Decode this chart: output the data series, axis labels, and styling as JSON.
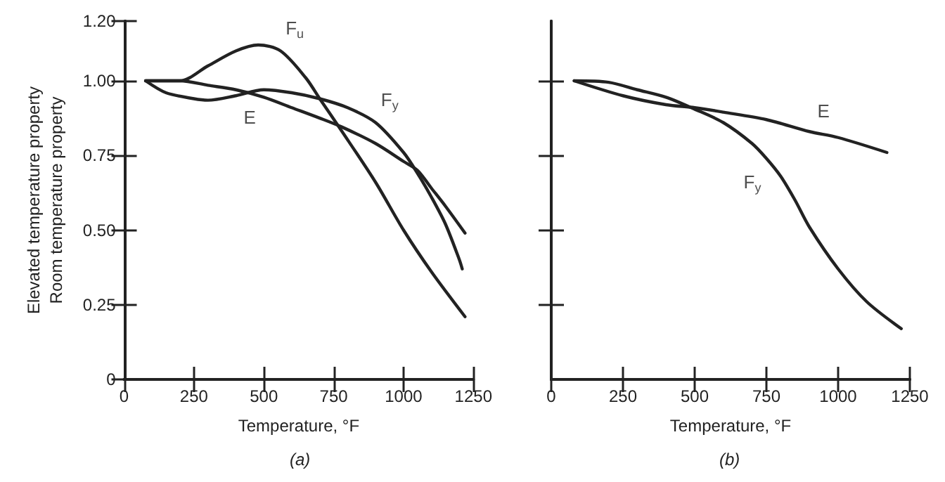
{
  "chart_data": [
    {
      "type": "line",
      "marker": "none",
      "line_style": "solid",
      "xlabel": "Temperature, °F",
      "ylabel": "Elevated temperature property\nRoom temperature property",
      "xlim": [
        0,
        1250
      ],
      "xticks": [
        0,
        250,
        500,
        750,
        1000,
        1250
      ],
      "ylim": [
        0,
        1.2
      ],
      "yticks": [
        0,
        0.25,
        {
          "value": 0.5,
          "label": "0.50"
        },
        0.75,
        {
          "value": 1.0,
          "label": "1.00"
        },
        {
          "value": 1.2,
          "label": "1.20"
        }
      ],
      "series": [
        {
          "color": "#222222",
          "x": [
            77,
            200,
            300,
            400,
            480,
            560,
            650,
            700,
            780,
            900,
            1000,
            1100,
            1220
          ],
          "values": [
            1.0,
            1.0,
            1.05,
            1.1,
            1.12,
            1.1,
            1.01,
            0.94,
            0.83,
            0.66,
            0.5,
            0.36,
            0.21
          ]
        },
        {
          "color": "#222222",
          "x": [
            77,
            200,
            300,
            400,
            500,
            600,
            700,
            780,
            900,
            1000,
            1050,
            1100,
            1150,
            1220
          ],
          "values": [
            1.0,
            1.0,
            0.985,
            0.97,
            0.945,
            0.91,
            0.875,
            0.845,
            0.79,
            0.73,
            0.7,
            0.64,
            0.58,
            0.49
          ]
        },
        {
          "color": "#222222",
          "x": [
            77,
            150,
            250,
            300,
            400,
            500,
            600,
            700,
            800,
            900,
            1000,
            1050,
            1100,
            1150,
            1200,
            1210
          ],
          "values": [
            1.0,
            0.96,
            0.94,
            0.935,
            0.95,
            0.97,
            0.96,
            0.94,
            0.91,
            0.86,
            0.76,
            0.69,
            0.61,
            0.52,
            0.4,
            0.37
          ]
        }
      ],
      "annotations": [
        {
          "text": "F$_{u}$",
          "x": 560,
          "y": 1.1
        },
        {
          "text": "F$_{y}$",
          "x": 900,
          "y": 0.86
        },
        {
          "text": "E",
          "x": 500,
          "y": 0.945
        },
        "(a)"
      ]
    },
    {
      "type": "line",
      "marker": "none",
      "line_style": "solid",
      "xlabel": "Temperature, °F",
      "tick_labels": "x",
      "xlim": [
        0,
        1250
      ],
      "xticks": [
        0,
        250,
        500,
        750,
        1000,
        1250
      ],
      "ylim": [
        0,
        1.2
      ],
      "yticks": [
        {
          "value": 0.25,
          "label": null
        },
        {
          "value": 0.5,
          "label": null
        },
        {
          "value": 0.75,
          "label": null
        },
        {
          "value": 1.0,
          "label": null
        }
      ],
      "series": [
        {
          "color": "#222222",
          "x": [
            80,
            250,
            400,
            500,
            600,
            750,
            900,
            1000,
            1170
          ],
          "values": [
            1.0,
            0.95,
            0.92,
            0.91,
            0.895,
            0.87,
            0.83,
            0.81,
            0.76
          ]
        },
        {
          "color": "#222222",
          "x": [
            80,
            200,
            300,
            400,
            500,
            600,
            700,
            750,
            800,
            850,
            900,
            1000,
            1100,
            1220
          ],
          "values": [
            1.0,
            0.995,
            0.97,
            0.945,
            0.905,
            0.86,
            0.79,
            0.74,
            0.68,
            0.6,
            0.51,
            0.37,
            0.26,
            0.17
          ]
        }
      ],
      "annotations": [
        {
          "text": "E",
          "x": 900,
          "y": 0.83
        },
        {
          "text": "F$_{y}$",
          "x": 750,
          "y": 0.74
        },
        "(b)"
      ]
    }
  ]
}
